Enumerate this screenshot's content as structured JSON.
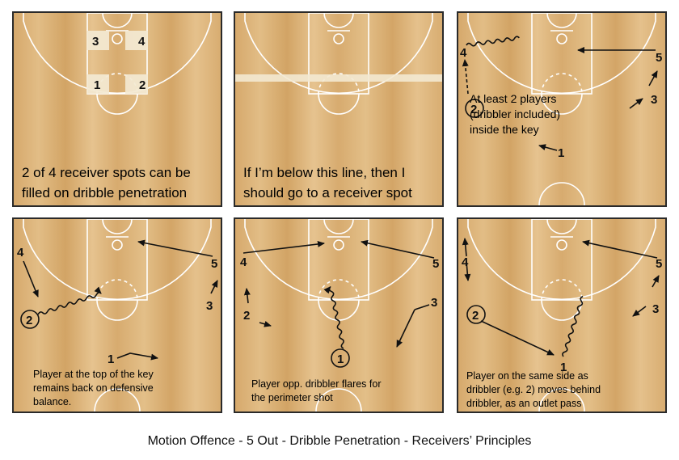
{
  "panels": [
    {
      "caption": [
        "2 of 4 receiver spots can be",
        "filled on dribble penetration"
      ],
      "labels": {
        "spot_1": "1",
        "spot_2": "2",
        "spot_3": "3",
        "spot_4": "4"
      }
    },
    {
      "caption": [
        "If I’m below this line, then I",
        "should go to a receiver spot"
      ],
      "labels": {}
    },
    {
      "caption": [
        "At least 2 players",
        "(dribbler included)",
        "inside the key"
      ],
      "labels": {
        "p1": "1",
        "p2": "2",
        "p3": "3",
        "p4": "4",
        "p5": "5"
      }
    },
    {
      "caption": [
        "Player at the top of the key",
        "remains back on defensive",
        "balance."
      ],
      "labels": {
        "p1": "1",
        "p2": "2",
        "p3": "3",
        "p4": "4",
        "p5": "5"
      }
    },
    {
      "caption": [
        "Player opp. dribbler flares for",
        "the perimeter shot"
      ],
      "labels": {
        "p1": "1",
        "p2": "2",
        "p3": "3",
        "p4": "4",
        "p5": "5"
      }
    },
    {
      "caption": [
        "Player on the same side as",
        "dribbler (e.g. 2) moves behind",
        "dribbler, as an outlet pass"
      ],
      "labels": {
        "p1": "1",
        "p2": "2",
        "p3": "3",
        "p4": "4",
        "p5": "5"
      }
    }
  ],
  "footer": "Motion Offence - 5 Out - Dribble Penetration - Receivers’ Principles",
  "colors": {
    "court": "#d9b077",
    "court_light": "#e4c08a",
    "court_dark": "#c99a5c",
    "line": "#ffffff",
    "ink": "#111111"
  }
}
